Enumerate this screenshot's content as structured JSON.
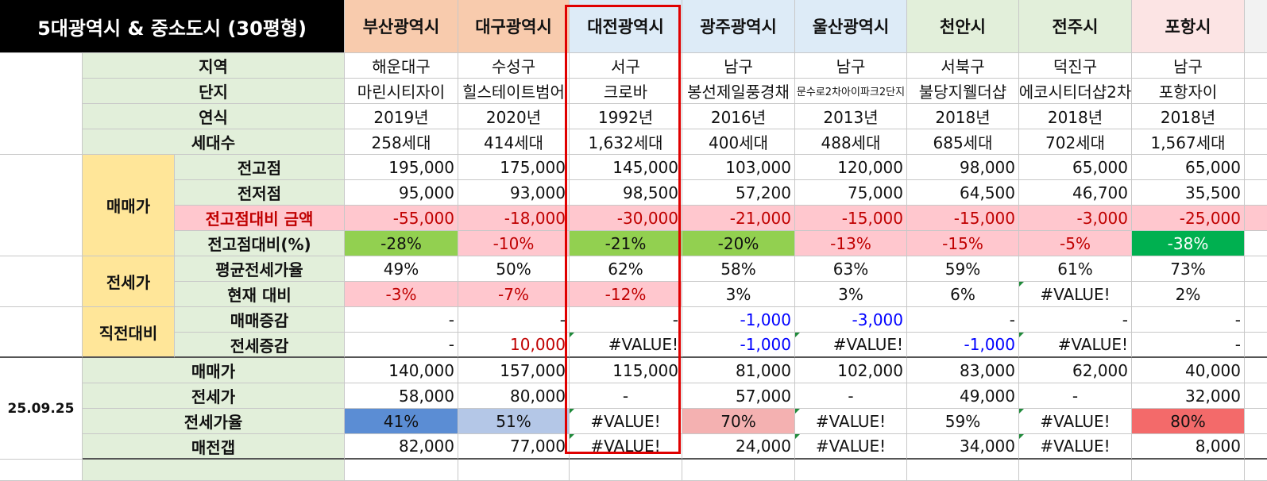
{
  "title": "5대광역시 & 중소도시 (30평형)",
  "cities": [
    "부산광역시",
    "대구광역시",
    "대전광역시",
    "광주광역시",
    "울산광역시",
    "천안시",
    "전주시",
    "포항시"
  ],
  "info": {
    "region": {
      "label": "지역",
      "values": [
        "해운대구",
        "수성구",
        "서구",
        "남구",
        "남구",
        "서북구",
        "덕진구",
        "남구"
      ]
    },
    "complex": {
      "label": "단지",
      "values": [
        "마린시티자이",
        "힐스테이트범어",
        "크로바",
        "봉선제일풍경채",
        "문수로2차아이파크2단지",
        "불당지웰더샵",
        "에코시티더샵2차",
        "포항자이"
      ]
    },
    "year": {
      "label": "연식",
      "values": [
        "2019년",
        "2020년",
        "1992년",
        "2016년",
        "2013년",
        "2018년",
        "2018년",
        "2018년"
      ]
    },
    "units": {
      "label": "세대수",
      "values": [
        "258세대",
        "414세대",
        "1,632세대",
        "400세대",
        "488세대",
        "685세대",
        "702세대",
        "1,567세대"
      ]
    }
  },
  "sale": {
    "category": "매매가",
    "high": {
      "label": "전고점",
      "values": [
        "195,000",
        "175,000",
        "145,000",
        "103,000",
        "120,000",
        "98,000",
        "65,000",
        "65,000"
      ]
    },
    "low": {
      "label": "전저점",
      "values": [
        "95,000",
        "93,000",
        "98,500",
        "57,200",
        "75,000",
        "64,500",
        "46,700",
        "35,500"
      ]
    },
    "diff_amount": {
      "label": "전고점대비 금액",
      "values": [
        "-55,000",
        "-18,000",
        "-30,000",
        "-21,000",
        "-15,000",
        "-15,000",
        "-3,000",
        "-25,000"
      ]
    },
    "diff_pct": {
      "label": "전고점대비(%)",
      "values": [
        "-28%",
        "-10%",
        "-21%",
        "-20%",
        "-13%",
        "-15%",
        "-5%",
        "-38%"
      ]
    }
  },
  "jeonse": {
    "category": "전세가",
    "avg_ratio": {
      "label": "평균전세가율",
      "values": [
        "49%",
        "50%",
        "62%",
        "58%",
        "63%",
        "59%",
        "61%",
        "73%"
      ]
    },
    "vs_now": {
      "label": "현재 대비",
      "values": [
        "-3%",
        "-7%",
        "-12%",
        "3%",
        "3%",
        "6%",
        "#VALUE!",
        "2%"
      ]
    }
  },
  "prev": {
    "category": "직전대비",
    "sale_change": {
      "label": "매매증감",
      "values": [
        "-",
        "-",
        "-",
        "-1,000",
        "-3,000",
        "-",
        "-",
        "-"
      ]
    },
    "jeonse_change": {
      "label": "전세증감",
      "values": [
        "-",
        "10,000",
        "#VALUE!",
        "-1,000",
        "#VALUE!",
        "-1,000",
        "#VALUE!",
        "-"
      ]
    }
  },
  "current": {
    "date": "25.09.25",
    "sale": {
      "label": "매매가",
      "values": [
        "140,000",
        "157,000",
        "115,000",
        "81,000",
        "102,000",
        "83,000",
        "62,000",
        "40,000"
      ]
    },
    "jeonse": {
      "label": "전세가",
      "values": [
        "58,000",
        "80,000",
        "-",
        "57,000",
        "-",
        "49,000",
        "-",
        "32,000"
      ]
    },
    "ratio": {
      "label": "전세가율",
      "values": [
        "41%",
        "51%",
        "#VALUE!",
        "70%",
        "#VALUE!",
        "59%",
        "#VALUE!",
        "80%"
      ]
    },
    "gap": {
      "label": "매전갭",
      "values": [
        "82,000",
        "77,000",
        "#VALUE!",
        "24,000",
        "#VALUE!",
        "34,000",
        "#VALUE!",
        "8,000"
      ]
    }
  },
  "colors": {
    "highlight_border": "#e00000",
    "label_bg": "#e2efda",
    "category_bg": "#ffe699",
    "negative": "#c00000",
    "positive_change": "#0000ff"
  }
}
